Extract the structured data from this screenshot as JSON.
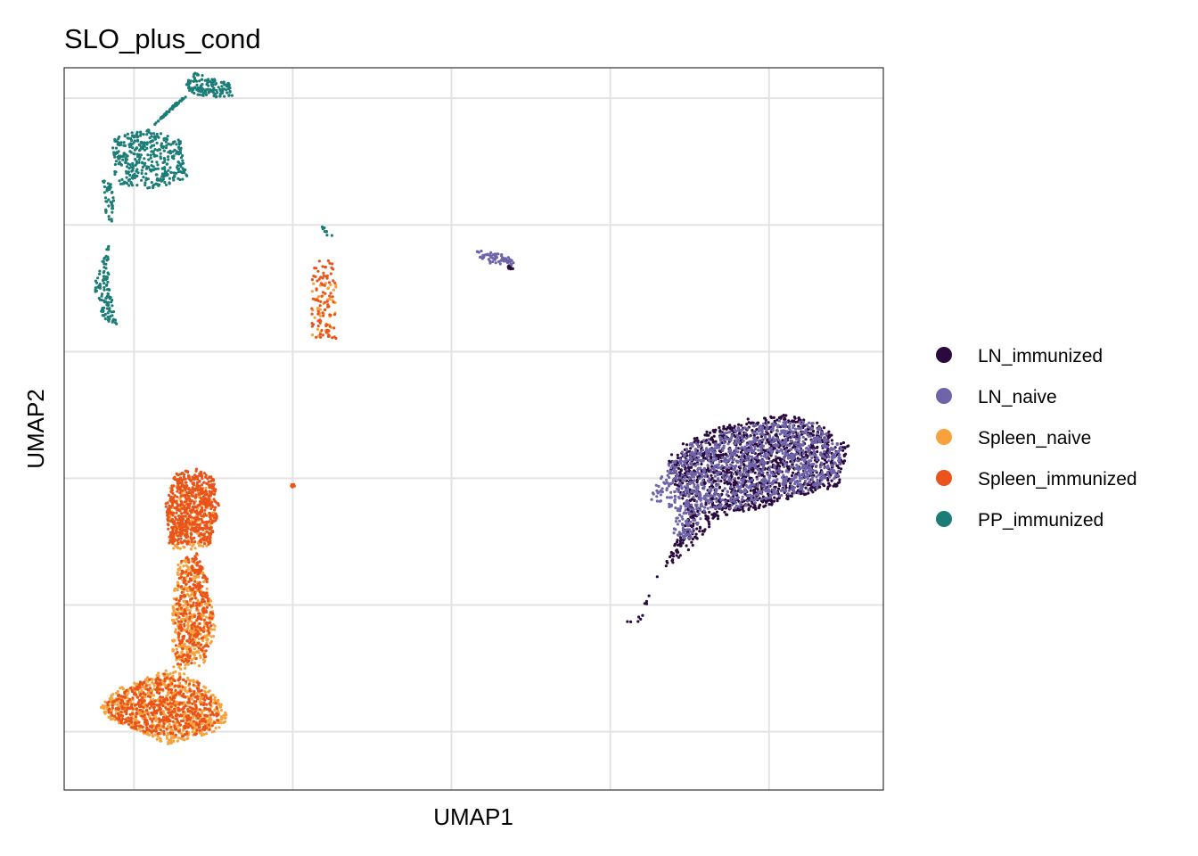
{
  "chart_data": {
    "type": "scatter",
    "title": "SLO_plus_cond",
    "xlabel": "UMAP1",
    "ylabel": "UMAP2",
    "xlim": [
      -7.2,
      18.6
    ],
    "ylim": [
      -17.3,
      11.2
    ],
    "x_breaks": [
      -5,
      0,
      5,
      10,
      15
    ],
    "y_breaks": [
      -15,
      -10,
      -5,
      0,
      5,
      10
    ],
    "tick_labels_shown": false,
    "grid": true,
    "legend_position": "right",
    "series": [
      {
        "name": "LN_immunized",
        "color": "#2A0A3E",
        "clusters": [
          {
            "polygon": [
              [
                10.7,
                -10.8
              ],
              [
                12.5,
                -6.5
              ],
              [
                12.0,
                -5.2
              ],
              [
                11.8,
                -4.2
              ],
              [
                12.5,
                -3.4
              ],
              [
                14.0,
                -2.7
              ],
              [
                15.5,
                -2.5
              ],
              [
                16.5,
                -2.7
              ],
              [
                17.0,
                -3.3
              ],
              [
                17.5,
                -3.7
              ],
              [
                17.2,
                -5.3
              ],
              [
                16.0,
                -5.7
              ],
              [
                14.7,
                -6.2
              ],
              [
                13.5,
                -6.5
              ],
              [
                12.5,
                -7.8
              ],
              [
                11.5,
                -8.8
              ],
              [
                11.2,
                -9.8
              ],
              [
                11.0,
                -10.6
              ],
              [
                10.5,
                -10.8
              ],
              [
                10.5,
                -10.3
              ]
            ],
            "n": 1450
          },
          {
            "polygon": [
              [
                6.7,
                3.7
              ],
              [
                7.0,
                3.3
              ],
              [
                6.8,
                3.2
              ]
            ],
            "n": 12
          }
        ]
      },
      {
        "name": "LN_naive",
        "color": "#6F64AA",
        "clusters": [
          {
            "polygon": [
              [
                11.2,
                -5.8
              ],
              [
                11.8,
                -4.5
              ],
              [
                12.5,
                -3.6
              ],
              [
                14.0,
                -3.0
              ],
              [
                15.5,
                -2.7
              ],
              [
                16.5,
                -2.8
              ],
              [
                17.3,
                -3.8
              ],
              [
                17.2,
                -5.0
              ],
              [
                16.3,
                -5.5
              ],
              [
                15.0,
                -5.8
              ],
              [
                14.0,
                -6.2
              ],
              [
                13.0,
                -6.2
              ],
              [
                12.5,
                -7.5
              ],
              [
                12.0,
                -7.2
              ],
              [
                12.0,
                -6.2
              ]
            ],
            "n": 1250
          },
          {
            "polygon": [
              [
                5.8,
                4.0
              ],
              [
                6.8,
                3.8
              ],
              [
                7.0,
                3.4
              ],
              [
                6.4,
                3.4
              ],
              [
                5.8,
                3.7
              ]
            ],
            "n": 60
          }
        ]
      },
      {
        "name": "Spleen_naive",
        "color": "#F9A13C",
        "clusters": [
          {
            "polygon": [
              [
                -6.1,
                -14.0
              ],
              [
                -5.5,
                -13.3
              ],
              [
                -4.8,
                -13.0
              ],
              [
                -4.0,
                -12.5
              ],
              [
                -3.2,
                -12.8
              ],
              [
                -2.3,
                -13.7
              ],
              [
                -2.0,
                -14.5
              ],
              [
                -2.4,
                -15.0
              ],
              [
                -3.0,
                -15.2
              ],
              [
                -4.0,
                -15.5
              ],
              [
                -5.0,
                -14.9
              ],
              [
                -5.8,
                -14.5
              ]
            ],
            "n": 750
          },
          {
            "polygon": [
              [
                -3.8,
                -12.6
              ],
              [
                -2.8,
                -12.4
              ],
              [
                -2.4,
                -11.0
              ],
              [
                -2.7,
                -9.0
              ],
              [
                -3.0,
                -8.0
              ],
              [
                -3.6,
                -8.3
              ],
              [
                -3.8,
                -10.0
              ]
            ],
            "n": 420
          },
          {
            "polygon": [
              [
                -3.8,
                -7.8
              ],
              [
                -2.7,
                -7.8
              ],
              [
                -2.4,
                -6.6
              ],
              [
                -2.7,
                -5.3
              ],
              [
                -3.9,
                -5.3
              ],
              [
                -3.9,
                -6.6
              ]
            ],
            "n": 180
          },
          {
            "polygon": [
              [
                0.6,
                2.8
              ],
              [
                1.4,
                2.8
              ],
              [
                1.3,
                0.5
              ],
              [
                0.6,
                0.5
              ]
            ],
            "n": 45
          }
        ]
      },
      {
        "name": "Spleen_immunized",
        "color": "#E9541A",
        "clusters": [
          {
            "polygon": [
              [
                -3.9,
                -7.6
              ],
              [
                -2.6,
                -7.6
              ],
              [
                -2.3,
                -6.2
              ],
              [
                -2.5,
                -5.0
              ],
              [
                -3.0,
                -4.6
              ],
              [
                -3.7,
                -4.8
              ],
              [
                -4.0,
                -6.0
              ]
            ],
            "n": 600
          },
          {
            "polygon": [
              [
                -3.7,
                -12.4
              ],
              [
                -2.7,
                -12.2
              ],
              [
                -2.5,
                -10.5
              ],
              [
                -2.7,
                -8.8
              ],
              [
                -3.0,
                -7.9
              ],
              [
                -3.5,
                -8.2
              ],
              [
                -3.7,
                -10.0
              ]
            ],
            "n": 300
          },
          {
            "polygon": [
              [
                -6.0,
                -14.0
              ],
              [
                -5.0,
                -13.1
              ],
              [
                -4.0,
                -12.7
              ],
              [
                -3.0,
                -13.0
              ],
              [
                -2.2,
                -14.2
              ],
              [
                -2.5,
                -14.9
              ],
              [
                -3.3,
                -15.2
              ],
              [
                -4.5,
                -15.1
              ],
              [
                -5.6,
                -14.6
              ]
            ],
            "n": 520
          },
          {
            "polygon": [
              [
                0.6,
                3.6
              ],
              [
                1.3,
                3.6
              ],
              [
                1.4,
                0.5
              ],
              [
                0.6,
                0.5
              ]
            ],
            "n": 90
          },
          {
            "polygon": [
              [
                -0.2,
                -5.3
              ],
              [
                0.1,
                -5.1
              ],
              [
                0.1,
                -5.4
              ]
            ],
            "n": 6
          }
        ]
      },
      {
        "name": "PP_immunized",
        "color": "#1C7D77",
        "clusters": [
          {
            "polygon": [
              [
                -3.1,
                11.0
              ],
              [
                -2.0,
                10.6
              ],
              [
                -1.9,
                10.1
              ],
              [
                -2.6,
                10.0
              ],
              [
                -3.2,
                10.2
              ],
              [
                -3.4,
                10.6
              ]
            ],
            "n": 140
          },
          {
            "polygon": [
              [
                -5.6,
                8.5
              ],
              [
                -4.4,
                8.8
              ],
              [
                -3.5,
                8.3
              ],
              [
                -3.3,
                6.8
              ],
              [
                -4.5,
                6.4
              ],
              [
                -5.5,
                6.6
              ],
              [
                -5.8,
                7.5
              ]
            ],
            "n": 380
          },
          {
            "polygon": [
              [
                -4.4,
                8.9
              ],
              [
                -3.2,
                10.2
              ],
              [
                -3.6,
                9.9
              ],
              [
                -4.2,
                9.2
              ]
            ],
            "n": 60
          },
          {
            "polygon": [
              [
                -6.0,
                6.8
              ],
              [
                -5.6,
                6.8
              ],
              [
                -5.7,
                4.5
              ],
              [
                -6.3,
                2.8
              ],
              [
                -6.0,
                1.3
              ],
              [
                -5.5,
                1.0
              ],
              [
                -5.8,
                2.6
              ],
              [
                -5.8,
                4.4
              ]
            ],
            "n": 150
          },
          {
            "polygon": [
              [
                0.8,
                5.1
              ],
              [
                1.3,
                4.6
              ],
              [
                1.1,
                4.5
              ]
            ],
            "n": 8
          }
        ]
      }
    ]
  }
}
